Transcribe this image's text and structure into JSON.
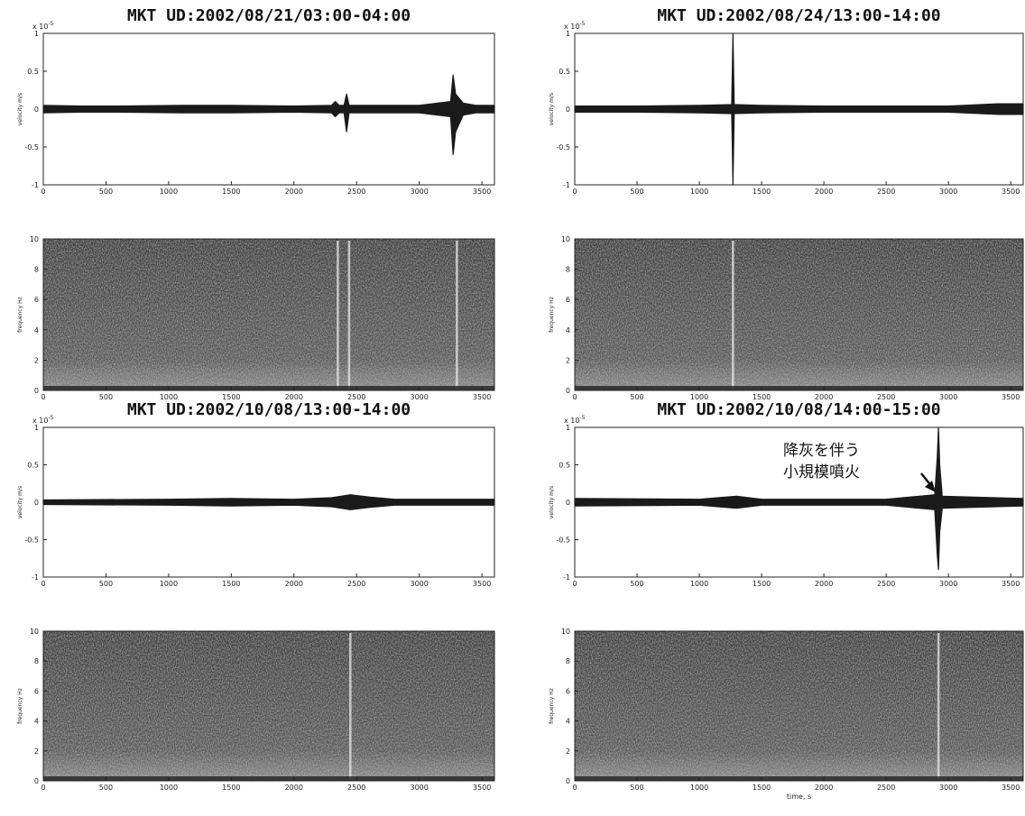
{
  "chart_data": [
    {
      "type": "line",
      "title": "MKT UD:2002/08/21/03:00-04:00",
      "ylabel": "velocity m/s",
      "multiplier": "x 10",
      "exponent": "-5",
      "x": [
        0,
        300,
        600,
        1100,
        1500,
        2000,
        2300,
        2330,
        2360,
        2400,
        2420,
        2440,
        2500,
        3000,
        3250,
        3270,
        3290,
        3350,
        3450,
        3600
      ],
      "values": [
        0.05,
        0.04,
        0.04,
        0.05,
        0.05,
        0.04,
        0.05,
        0.1,
        0.05,
        0.05,
        0.2,
        0.05,
        0.05,
        0.05,
        0.1,
        0.45,
        0.2,
        0.08,
        0.05,
        0.05
      ],
      "lower": [
        -0.05,
        -0.04,
        -0.04,
        -0.05,
        -0.05,
        -0.04,
        -0.05,
        -0.1,
        -0.05,
        -0.05,
        -0.3,
        -0.05,
        -0.05,
        -0.05,
        -0.1,
        -0.6,
        -0.3,
        -0.08,
        -0.05,
        -0.05
      ],
      "xlim": [
        0,
        3600
      ],
      "xticks": [
        0,
        500,
        1000,
        1500,
        2000,
        2500,
        3000,
        3500
      ],
      "ylim": [
        -1,
        1
      ],
      "yticks": [
        -1,
        -0.5,
        0,
        0.5,
        1
      ]
    },
    {
      "type": "spectrogram",
      "ylabel": "frequency Hz",
      "streaks": [
        2350,
        2440,
        3300
      ],
      "xlim": [
        0,
        3600
      ],
      "xticks": [
        0,
        500,
        1000,
        1500,
        2000,
        2500,
        3000,
        3500
      ],
      "ylim": [
        0,
        10
      ],
      "yticks": [
        0,
        2,
        4,
        6,
        8,
        10
      ]
    },
    {
      "type": "line",
      "title": "MKT UD:2002/08/24/13:00-14:00",
      "ylabel": "velocity m/s",
      "multiplier": "x 10",
      "exponent": "-5",
      "x": [
        0,
        500,
        1000,
        1260,
        1270,
        1280,
        1500,
        2000,
        3000,
        3400,
        3600
      ],
      "values": [
        0.04,
        0.04,
        0.05,
        0.06,
        1,
        0.06,
        0.05,
        0.04,
        0.04,
        0.07,
        0.07
      ],
      "lower": [
        -0.04,
        -0.04,
        -0.05,
        -0.06,
        -1,
        -0.06,
        -0.05,
        -0.04,
        -0.04,
        -0.07,
        -0.07
      ],
      "xlim": [
        0,
        3600
      ],
      "xticks": [
        0,
        500,
        1000,
        1500,
        2000,
        2500,
        3000,
        3500
      ],
      "ylim": [
        -1,
        1
      ],
      "yticks": [
        -1,
        -0.5,
        0,
        0.5,
        1
      ]
    },
    {
      "type": "spectrogram",
      "ylabel": "frequency Hz",
      "streaks": [
        1270
      ],
      "xlim": [
        0,
        3600
      ],
      "xticks": [
        0,
        500,
        1000,
        1500,
        2000,
        2500,
        3000,
        3500
      ],
      "ylim": [
        0,
        10
      ],
      "yticks": [
        0,
        2,
        4,
        6,
        8,
        10
      ]
    },
    {
      "type": "line",
      "title": "MKT UD:2002/10/08/13:00-14:00",
      "ylabel": "velocity m/s",
      "multiplier": "x 10",
      "exponent": "-5",
      "x": [
        0,
        1000,
        1500,
        2000,
        2300,
        2450,
        2600,
        2800,
        3600
      ],
      "values": [
        0.03,
        0.04,
        0.05,
        0.04,
        0.06,
        0.1,
        0.07,
        0.04,
        0.04
      ],
      "lower": [
        -0.03,
        -0.04,
        -0.05,
        -0.04,
        -0.06,
        -0.1,
        -0.07,
        -0.04,
        -0.04
      ],
      "xlim": [
        0,
        3600
      ],
      "xticks": [
        0,
        500,
        1000,
        1500,
        2000,
        2500,
        3000,
        3500
      ],
      "ylim": [
        -1,
        1
      ],
      "yticks": [
        -1,
        -0.5,
        0,
        0.5,
        1
      ]
    },
    {
      "type": "spectrogram",
      "ylabel": "frequency Hz",
      "streaks": [
        2450
      ],
      "xlim": [
        0,
        3600
      ],
      "xticks": [
        0,
        500,
        1000,
        1500,
        2000,
        2500,
        3000,
        3500
      ],
      "ylim": [
        0,
        10
      ],
      "yticks": [
        0,
        2,
        4,
        6,
        8,
        10
      ]
    },
    {
      "type": "line",
      "title": "MKT UD:2002/10/08/14:00-15:00",
      "ylabel": "velocity m/s",
      "multiplier": "x 10",
      "exponent": "-5",
      "annotation": [
        "降灰を伴う",
        "小規模噴火"
      ],
      "x": [
        0,
        1000,
        1150,
        1300,
        1500,
        2500,
        2890,
        2910,
        2920,
        2930,
        2950,
        3600
      ],
      "values": [
        0.05,
        0.04,
        0.06,
        0.08,
        0.04,
        0.04,
        0.1,
        0.6,
        1,
        0.5,
        0.08,
        0.05
      ],
      "lower": [
        -0.05,
        -0.04,
        -0.06,
        -0.08,
        -0.04,
        -0.04,
        -0.1,
        -0.7,
        -0.9,
        -0.4,
        -0.08,
        -0.05
      ],
      "xlim": [
        0,
        3600
      ],
      "xticks": [
        0,
        500,
        1000,
        1500,
        2000,
        2500,
        3000,
        3500
      ],
      "ylim": [
        -1,
        1
      ],
      "yticks": [
        -1,
        -0.5,
        0,
        0.5,
        1
      ]
    },
    {
      "type": "spectrogram",
      "ylabel": "frequency Hz",
      "xlabel": "time, s",
      "streaks": [
        2920
      ],
      "xlim": [
        0,
        3600
      ],
      "xticks": [
        0,
        500,
        1000,
        1500,
        2000,
        2500,
        3000,
        3500
      ],
      "ylim": [
        0,
        10
      ],
      "yticks": [
        0,
        2,
        4,
        6,
        8,
        10
      ]
    }
  ]
}
